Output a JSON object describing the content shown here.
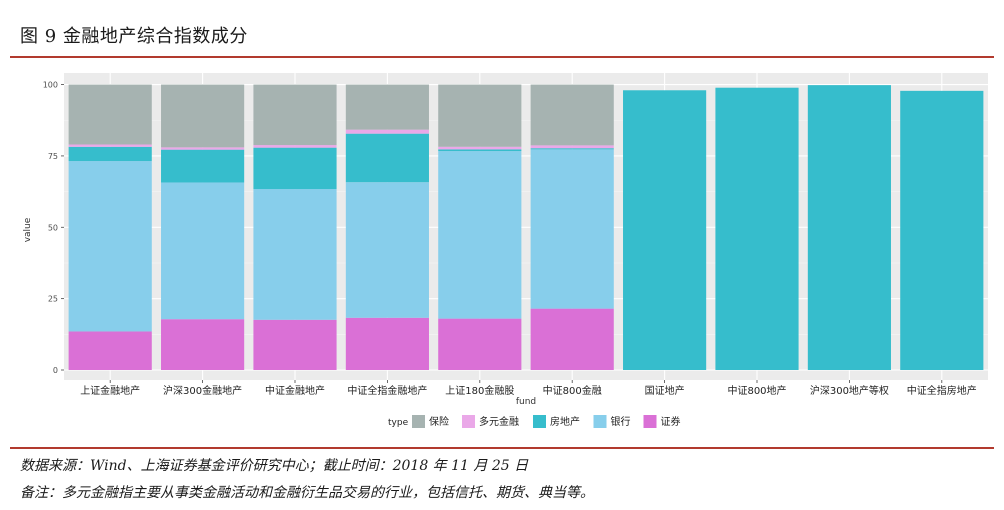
{
  "figure": {
    "title": "图 9  金融地产综合指数成分",
    "source_note": "数据来源：Wind、上海证券基金评价研究中心；截止时间：2018 年 11 月 25 日",
    "remark": "备注：多元金融指主要从事类金融活动和金融衍生品交易的行业，包括信托、期货、典当等。"
  },
  "chart_data": {
    "type": "bar",
    "stacked": true,
    "xlabel": "fund",
    "ylabel": "value",
    "ylim": [
      0,
      103
    ],
    "yticks": [
      0,
      25,
      50,
      75,
      100
    ],
    "grid": true,
    "legend_title": "type",
    "legend_position": "bottom",
    "categories": [
      "上证金融地产",
      "沪深300金融地产",
      "中证金融地产",
      "中证全指金融地产",
      "上证180金融股",
      "中证800金融",
      "国证地产",
      "中证800地产",
      "沪深300地产等权",
      "中证全指房地产"
    ],
    "series": [
      {
        "name": "证券",
        "color": "#DA70D6",
        "values": [
          13.5,
          17.8,
          17.6,
          18.3,
          18.0,
          21.5,
          0,
          0,
          0,
          0
        ]
      },
      {
        "name": "银行",
        "color": "#87CEEB",
        "values": [
          59.7,
          47.9,
          45.8,
          47.5,
          58.7,
          55.8,
          0,
          0,
          0,
          0
        ]
      },
      {
        "name": "房地产",
        "color": "#36BDCC",
        "values": [
          5.0,
          11.5,
          14.5,
          17.0,
          0.6,
          0.4,
          98.0,
          98.9,
          99.8,
          97.8
        ]
      },
      {
        "name": "多元金融",
        "color": "#EAA8E8",
        "values": [
          0.8,
          0.8,
          0.9,
          1.4,
          0.9,
          1.0,
          0,
          0,
          0,
          0
        ]
      },
      {
        "name": "保险",
        "color": "#A6B3B1",
        "values": [
          21.0,
          22.0,
          21.2,
          15.8,
          21.8,
          21.3,
          0,
          0,
          0,
          0
        ]
      }
    ],
    "legend_order": [
      "保险",
      "多元金融",
      "房地产",
      "银行",
      "证券"
    ]
  }
}
